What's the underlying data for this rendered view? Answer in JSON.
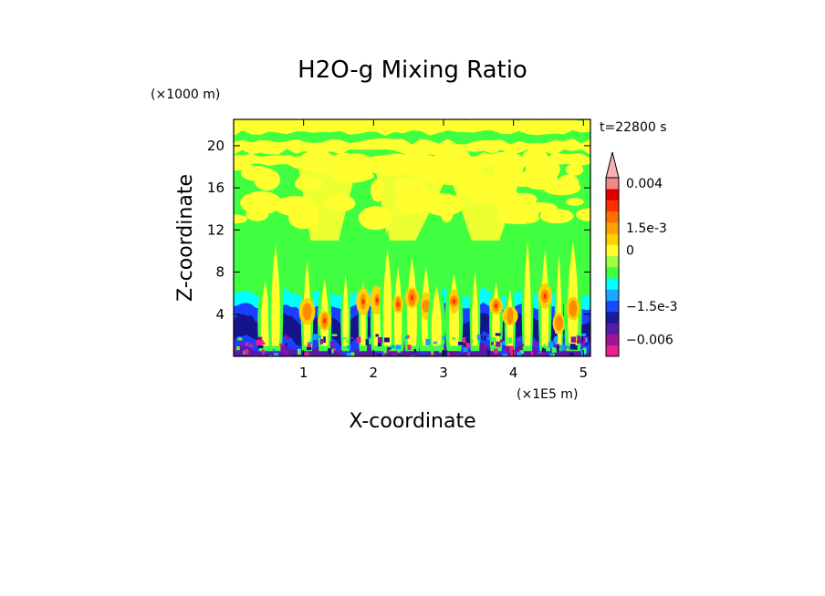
{
  "chart_data": {
    "type": "heatmap",
    "title": "H2O-g Mixing Ratio",
    "xlabel": "X-coordinate",
    "ylabel": "Z-coordinate",
    "x_unit_label": "(×1E5 m)",
    "y_unit_label": "(×1000 m)",
    "time_label": "t=22800 s",
    "xlim": [
      0,
      5.1
    ],
    "ylim": [
      0,
      22.5
    ],
    "x_ticks": [
      {
        "value": 1,
        "label": "1"
      },
      {
        "value": 2,
        "label": "2"
      },
      {
        "value": 3,
        "label": "3"
      },
      {
        "value": 4,
        "label": "4"
      },
      {
        "value": 5,
        "label": "5"
      }
    ],
    "y_ticks": [
      {
        "value": 4,
        "label": "4"
      },
      {
        "value": 8,
        "label": "8"
      },
      {
        "value": 12,
        "label": "12"
      },
      {
        "value": 16,
        "label": "16"
      },
      {
        "value": 20,
        "label": "20"
      }
    ],
    "colorbar": {
      "colors": [
        "#e8208e",
        "#a0149a",
        "#5a1aa8",
        "#1a1a9a",
        "#1a48ff",
        "#1aa8ff",
        "#00ffff",
        "#40ff40",
        "#a0ff40",
        "#ffff30",
        "#ffd000",
        "#ffa000",
        "#ff7000",
        "#ff3000",
        "#e00000",
        "#f08888"
      ],
      "overflow_color": "#f8b0b0",
      "labels": [
        {
          "text": "0.004",
          "index": 15
        },
        {
          "text": "1.5e-3",
          "index": 11
        },
        {
          "text": "0",
          "index": 9
        },
        {
          "text": "−1.5e-3",
          "index": 4
        },
        {
          "text": "−0.006",
          "index": 1
        }
      ]
    },
    "palette": {
      "magenta": "#e8208e",
      "purple": "#8a12a8",
      "violet": "#5a1aa8",
      "navy": "#14148c",
      "blue": "#1a40ff",
      "sky": "#10a0ff",
      "cyan": "#00ffff",
      "green": "#40ff40",
      "lime": "#a0ff40",
      "yellow": "#ffff30",
      "gold": "#ffd000",
      "orange": "#ff8c00",
      "red": "#ff2a00"
    }
  }
}
